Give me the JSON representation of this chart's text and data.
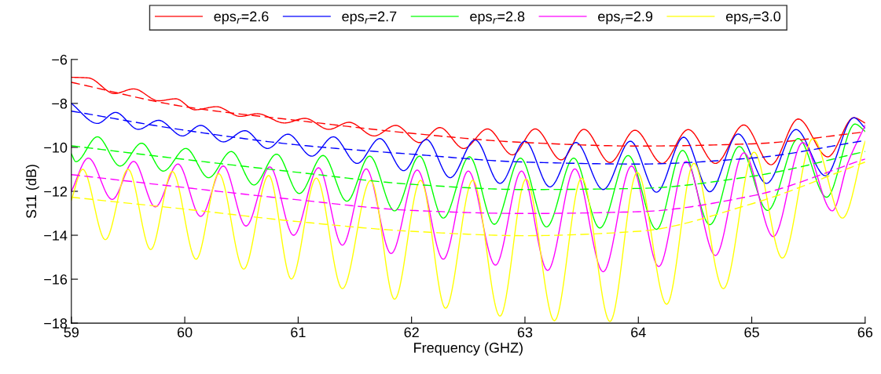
{
  "chart_data": {
    "type": "line",
    "xlabel": "Frequency (GHZ)",
    "ylabel": "S11 (dB)",
    "xlim": [
      59,
      66
    ],
    "ylim": [
      -18,
      -6
    ],
    "xticks": [
      59,
      60,
      61,
      62,
      63,
      64,
      65,
      66
    ],
    "yticks": [
      -18,
      -16,
      -14,
      -12,
      -10,
      -8,
      -6
    ],
    "grid": false,
    "legend": "top",
    "marker": "none",
    "series": [
      {
        "name": "eps$_{r}$=2.6",
        "color": "#ff0000",
        "line_style": "solid",
        "x": [
          59,
          59.15,
          59.38,
          59.55,
          59.77,
          59.92,
          60.09,
          60.28,
          60.49,
          60.64,
          60.88,
          61.06,
          61.27,
          61.45,
          61.67,
          61.86,
          62.07,
          62.25,
          62.46,
          62.67,
          62.89,
          63.09,
          63.32,
          63.52,
          63.75,
          63.97,
          64.21,
          64.44,
          64.68,
          64.93,
          65.17,
          65.41,
          65.67,
          65.9,
          66
        ],
        "values": [
          -6.81,
          -6.84,
          -7.55,
          -7.34,
          -7.88,
          -7.79,
          -8.29,
          -8.15,
          -8.59,
          -8.47,
          -8.89,
          -8.68,
          -9.18,
          -8.86,
          -9.48,
          -9.0,
          -9.78,
          -9.1,
          -10.05,
          -9.16,
          -10.34,
          -9.16,
          -10.57,
          -9.18,
          -10.69,
          -9.22,
          -10.73,
          -9.19,
          -10.73,
          -8.98,
          -10.79,
          -8.71,
          -10.43,
          -8.65,
          -8.89
        ]
      },
      {
        "name": "eps$_{r}$=2.7",
        "color": "#0000ff",
        "line_style": "solid",
        "x": [
          59,
          59.23,
          59.39,
          59.59,
          59.77,
          59.98,
          60.14,
          60.34,
          60.53,
          60.73,
          60.91,
          61.12,
          61.31,
          61.52,
          61.72,
          61.93,
          62.13,
          62.34,
          62.56,
          62.78,
          63.0,
          63.22,
          63.45,
          63.69,
          63.93,
          64.16,
          64.4,
          64.63,
          64.88,
          65.13,
          65.39,
          65.65,
          65.9,
          66
        ],
        "values": [
          -8.0,
          -8.91,
          -8.41,
          -9.18,
          -8.77,
          -9.48,
          -9.0,
          -9.75,
          -9.24,
          -10.05,
          -9.4,
          -10.4,
          -9.52,
          -10.73,
          -9.6,
          -11.06,
          -9.64,
          -11.38,
          -9.66,
          -11.64,
          -9.72,
          -11.8,
          -9.78,
          -11.92,
          -9.72,
          -12.04,
          -9.54,
          -12.02,
          -9.39,
          -11.64,
          -9.19,
          -11.29,
          -8.65,
          -9.12
        ]
      },
      {
        "name": "eps$_{r}$=2.8",
        "color": "#00ff00",
        "line_style": "solid",
        "x": [
          59,
          59.04,
          59.23,
          59.43,
          59.62,
          59.81,
          60.01,
          60.21,
          60.41,
          60.61,
          60.81,
          61.01,
          61.22,
          61.43,
          61.63,
          61.85,
          62.07,
          62.28,
          62.51,
          62.73,
          62.96,
          63.19,
          63.43,
          63.66,
          63.91,
          64.16,
          64.39,
          64.63,
          64.89,
          65.14,
          65.41,
          65.66,
          65.91,
          66
        ],
        "values": [
          -10.3,
          -10.65,
          -9.52,
          -10.85,
          -9.81,
          -11.08,
          -10.05,
          -11.38,
          -10.19,
          -11.71,
          -10.31,
          -12.1,
          -10.37,
          -12.45,
          -10.4,
          -12.89,
          -10.4,
          -13.22,
          -10.43,
          -13.5,
          -10.49,
          -13.62,
          -10.49,
          -13.67,
          -10.37,
          -13.73,
          -10.14,
          -13.52,
          -9.96,
          -12.87,
          -9.6,
          -12.27,
          -8.94,
          -9.27
        ]
      },
      {
        "name": "eps$_{r}$=2.9",
        "color": "#ff00ff",
        "line_style": "solid",
        "x": [
          59,
          59.15,
          59.36,
          59.55,
          59.74,
          59.94,
          60.14,
          60.34,
          60.54,
          60.75,
          60.96,
          61.18,
          61.39,
          61.6,
          61.82,
          62.05,
          62.28,
          62.5,
          62.74,
          62.97,
          63.2,
          63.44,
          63.69,
          63.94,
          64.18,
          64.42,
          64.68,
          64.93,
          65.19,
          65.45,
          65.71,
          65.85,
          66
        ],
        "values": [
          -12.0,
          -10.49,
          -12.37,
          -10.64,
          -12.71,
          -10.76,
          -13.14,
          -10.85,
          -13.58,
          -10.89,
          -14.0,
          -10.93,
          -14.45,
          -10.98,
          -14.83,
          -11.03,
          -15.09,
          -11.08,
          -15.36,
          -11.08,
          -15.6,
          -10.98,
          -15.66,
          -10.85,
          -15.42,
          -10.64,
          -14.92,
          -10.25,
          -14.06,
          -9.78,
          -12.89,
          -10.67,
          -9.0
        ]
      },
      {
        "name": "eps$_{r}$=3.0",
        "color": "#ffff00",
        "line_style": "solid",
        "x": [
          59,
          59.1,
          59.3,
          59.5,
          59.7,
          59.89,
          60.1,
          60.3,
          60.52,
          60.74,
          60.94,
          61.16,
          61.39,
          61.64,
          61.85,
          62.08,
          62.3,
          62.54,
          62.78,
          63.01,
          63.26,
          63.5,
          63.75,
          63.99,
          64.25,
          64.49,
          64.75,
          65.02,
          65.27,
          65.54,
          65.8,
          66
        ],
        "values": [
          -12.4,
          -11.0,
          -14.2,
          -11.0,
          -14.65,
          -11.1,
          -15.09,
          -11.2,
          -15.54,
          -11.28,
          -15.99,
          -11.4,
          -16.43,
          -11.5,
          -16.91,
          -11.5,
          -17.32,
          -11.5,
          -17.68,
          -11.44,
          -17.89,
          -11.4,
          -17.92,
          -11.14,
          -17.14,
          -10.73,
          -16.43,
          -10.22,
          -15.04,
          -9.6,
          -13.22,
          -9.72
        ]
      },
      {
        "color": "#ff0000",
        "line_style": "dashed",
        "x": [
          59,
          60,
          61,
          62,
          63,
          64,
          65,
          66
        ],
        "values": [
          -7.04,
          -8.15,
          -8.78,
          -9.36,
          -9.78,
          -9.94,
          -9.84,
          -9.3
        ]
      },
      {
        "color": "#0000ff",
        "line_style": "dashed",
        "x": [
          59,
          60,
          61,
          62,
          63,
          64,
          65,
          66
        ],
        "values": [
          -8.35,
          -9.22,
          -9.89,
          -10.31,
          -10.67,
          -10.76,
          -10.49,
          -9.69
        ]
      },
      {
        "color": "#00ff00",
        "line_style": "dashed",
        "x": [
          59,
          60,
          61,
          62,
          63,
          64,
          65,
          66
        ],
        "values": [
          -9.93,
          -10.55,
          -11.14,
          -11.68,
          -11.92,
          -11.87,
          -11.32,
          -10.19
        ]
      },
      {
        "color": "#ff00ff",
        "line_style": "dashed",
        "x": [
          59,
          60,
          61,
          62,
          63,
          64,
          65,
          66
        ],
        "values": [
          -11.24,
          -11.83,
          -12.39,
          -12.87,
          -13.01,
          -12.93,
          -12.21,
          -10.53
        ]
      },
      {
        "color": "#ffff00",
        "line_style": "dashed",
        "x": [
          59,
          60,
          61,
          62,
          63,
          64,
          65,
          66
        ],
        "values": [
          -12.27,
          -12.81,
          -13.38,
          -13.82,
          -14.02,
          -13.82,
          -12.57,
          -10.67
        ]
      }
    ]
  }
}
